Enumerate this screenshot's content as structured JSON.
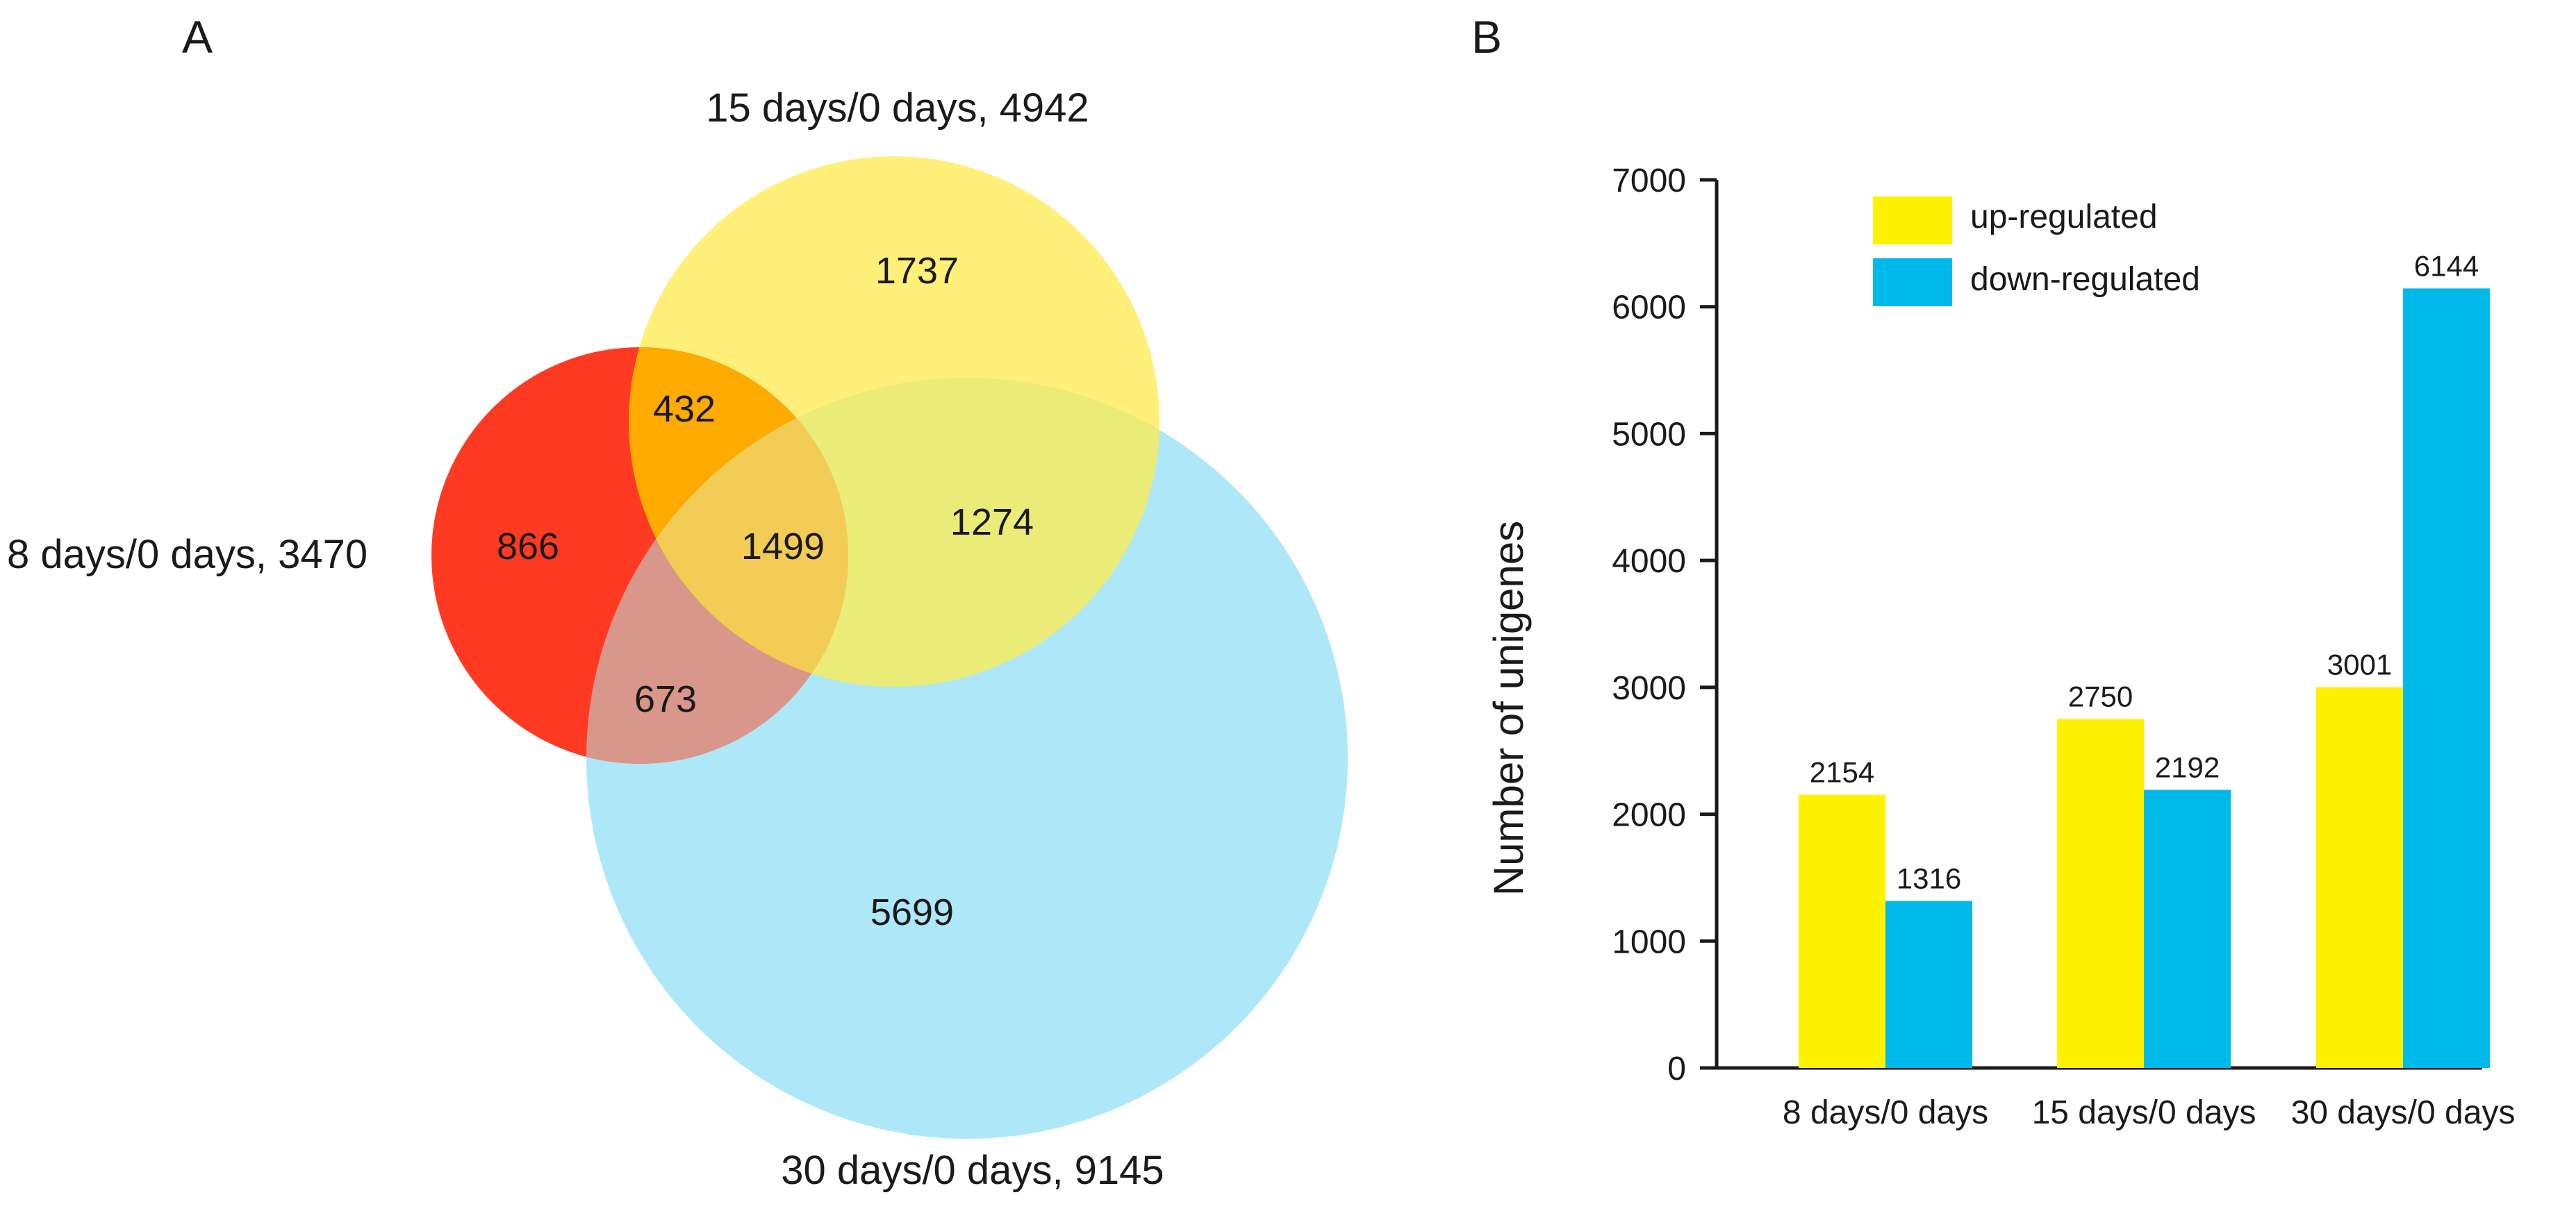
{
  "panel_a": {
    "label": "A",
    "colors": {
      "set_8": "#ff3a22",
      "set_15": "#fff07a",
      "set_30": "#aee8f8",
      "overlap_8_15": "#ffaa00",
      "overlap_8_30": "#d8978a",
      "overlap_15_30": "#ebeb78",
      "overlap_all": "#f2cc55"
    },
    "sets": [
      {
        "key": "set_8",
        "label": "8 days/0 days, 3470"
      },
      {
        "key": "set_15",
        "label": "15 days/0 days, 4942"
      },
      {
        "key": "set_30",
        "label": "30 days/0 days, 9145"
      }
    ],
    "regions": {
      "only_8": "866",
      "only_15": "1737",
      "only_30": "5699",
      "8_15": "432",
      "8_30": "673",
      "15_30": "1274",
      "all": "1499"
    }
  },
  "panel_b": {
    "label": "B",
    "chart_data": {
      "type": "bar",
      "title": "",
      "xlabel": "",
      "ylabel": "Number of unigenes",
      "ylim": [
        0,
        7000
      ],
      "yticks": [
        0,
        1000,
        2000,
        3000,
        4000,
        5000,
        6000,
        7000
      ],
      "categories": [
        "8 days/0 days",
        "15 days/0 days",
        "30 days/0 days"
      ],
      "series": [
        {
          "name": "up-regulated",
          "color": "#fff200",
          "values": [
            2154,
            2750,
            3001
          ]
        },
        {
          "name": "down-regulated",
          "color": "#00b9eb",
          "values": [
            1316,
            2192,
            6144
          ]
        }
      ],
      "legend_position": "top"
    }
  }
}
